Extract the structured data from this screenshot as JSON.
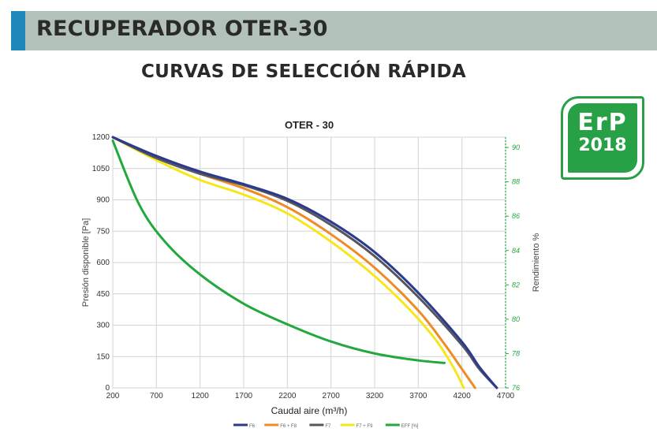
{
  "header": {
    "title": "RECUPERADOR OTER-30"
  },
  "subtitle": "CURVAS DE SELECCIÓN RÁPIDA",
  "badge": {
    "line1": "ErP",
    "line2": "2018"
  },
  "colors": {
    "header_bg": "#b3c2b9",
    "header_accent": "#1e88b8",
    "badge": "#27a046",
    "F6": "#2b3a8c",
    "F6F8": "#f08a24",
    "F7": "#55565f",
    "F7F9": "#f6e61c",
    "EFF": "#22a83c"
  },
  "chart_data": {
    "type": "line",
    "title": "OTER - 30",
    "xlabel": "Caudal aire (m³/h)",
    "ylabel": "Presión disponible [Pa]",
    "y2label": "Rendimiento %",
    "xlim": [
      200,
      4700
    ],
    "ylim": [
      0,
      1200
    ],
    "y2lim": [
      76,
      90.6
    ],
    "xticks": [
      "200",
      "700",
      "1200",
      "1700",
      "2200",
      "2700",
      "3200",
      "3700",
      "4200",
      "4700"
    ],
    "yticks": [
      "0",
      "150",
      "300",
      "450",
      "600",
      "750",
      "900",
      "1050",
      "1200"
    ],
    "y2ticks": [
      "76",
      "78",
      "80",
      "82",
      "84",
      "86",
      "88",
      "90"
    ],
    "grid": true,
    "legend_position": "bottom",
    "series": [
      {
        "name": "F6",
        "color": "#2b3a8c",
        "axis": "left",
        "x": [
          200,
          700,
          1200,
          1700,
          2200,
          2700,
          3200,
          3700,
          4200,
          4400,
          4600
        ],
        "y": [
          1200,
          1110,
          1035,
          975,
          905,
          795,
          650,
          455,
          220,
          100,
          0
        ]
      },
      {
        "name": "F6 + F8",
        "color": "#f08a24",
        "axis": "left",
        "x": [
          200,
          700,
          1200,
          1700,
          2200,
          2700,
          3200,
          3700,
          4000,
          4200,
          4350
        ],
        "y": [
          1200,
          1105,
          1025,
          955,
          865,
          735,
          575,
          370,
          210,
          90,
          0
        ]
      },
      {
        "name": "F7",
        "color": "#55565f",
        "axis": "left",
        "x": [
          200,
          700,
          1200,
          1700,
          2200,
          2700,
          3200,
          3700,
          4200,
          4400,
          4600
        ],
        "y": [
          1200,
          1100,
          1025,
          970,
          895,
          780,
          630,
          435,
          205,
          90,
          0
        ]
      },
      {
        "name": "F7 + F9",
        "color": "#f6e61c",
        "axis": "left",
        "x": [
          200,
          700,
          1200,
          1700,
          2200,
          2700,
          3200,
          3600,
          3900,
          4100,
          4220
        ],
        "y": [
          1200,
          1090,
          995,
          925,
          835,
          700,
          535,
          375,
          230,
          100,
          0
        ]
      },
      {
        "name": "EFF [%]",
        "color": "#22a83c",
        "axis": "right",
        "x": [
          200,
          500,
          800,
          1200,
          1700,
          2200,
          2700,
          3200,
          3700,
          4000
        ],
        "y": [
          90.4,
          86.7,
          84.5,
          82.6,
          80.9,
          79.7,
          78.7,
          78.0,
          77.6,
          77.45
        ]
      }
    ]
  }
}
